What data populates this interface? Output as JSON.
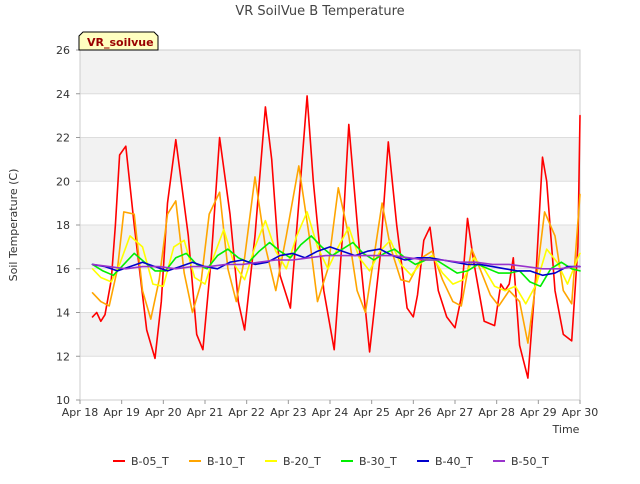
{
  "chart_data": {
    "type": "line",
    "title": "VR SoilVue B Temperature",
    "xlabel": "Time",
    "ylabel": "Soil Temperature (C)",
    "site_label": "VR_soilvue",
    "ylim": [
      10,
      26
    ],
    "yticks": [
      10,
      12,
      14,
      16,
      18,
      20,
      22,
      24,
      26
    ],
    "xlim": [
      "2024-04-18",
      "2024-04-30"
    ],
    "xticks": [
      "Apr 18",
      "Apr 19",
      "Apr 20",
      "Apr 21",
      "Apr 22",
      "Apr 23",
      "Apr 24",
      "Apr 25",
      "Apr 26",
      "Apr 27",
      "Apr 28",
      "Apr 29",
      "Apr 30"
    ],
    "grid": true,
    "legend_position": "bottom",
    "series": [
      {
        "name": "B-05_T",
        "color": "#ff0000",
        "x": [
          0.3,
          0.4,
          0.5,
          0.6,
          0.75,
          0.85,
          0.95,
          1.1,
          1.3,
          1.6,
          1.8,
          1.95,
          2.1,
          2.3,
          2.6,
          2.8,
          2.95,
          3.15,
          3.35,
          3.6,
          3.8,
          3.95,
          4.2,
          4.45,
          4.6,
          4.8,
          5.05,
          5.25,
          5.45,
          5.6,
          5.85,
          6.1,
          6.3,
          6.45,
          6.7,
          6.95,
          7.2,
          7.4,
          7.6,
          7.85,
          8.0,
          8.1,
          8.25,
          8.4,
          8.6,
          8.8,
          9.0,
          9.15,
          9.3,
          9.45,
          9.7,
          9.95,
          10.1,
          10.2,
          10.3,
          10.4,
          10.55,
          10.75,
          10.95,
          11.1,
          11.2,
          11.4,
          11.6,
          11.8,
          11.95,
          12.0
        ],
        "y": [
          13.8,
          14.0,
          13.6,
          13.9,
          15.5,
          18.0,
          21.2,
          21.6,
          18.0,
          13.2,
          11.9,
          14.5,
          19.0,
          21.9,
          17.5,
          13.0,
          12.3,
          16.5,
          22.0,
          18.5,
          14.5,
          13.2,
          17.5,
          23.4,
          21.0,
          15.7,
          14.2,
          19.0,
          23.9,
          20.0,
          15.0,
          12.3,
          17.5,
          22.6,
          17.0,
          12.2,
          16.5,
          21.8,
          18.0,
          14.2,
          13.8,
          14.8,
          17.3,
          17.9,
          15.0,
          13.8,
          13.3,
          14.7,
          18.3,
          16.3,
          13.6,
          13.4,
          15.3,
          15.0,
          15.3,
          16.5,
          12.5,
          11.0,
          16.0,
          21.1,
          20.0,
          15.0,
          13.0,
          12.7,
          17.0,
          23.0
        ]
      },
      {
        "name": "B-10_T",
        "color": "#ffa500",
        "x": [
          0.3,
          0.5,
          0.7,
          0.9,
          1.05,
          1.3,
          1.5,
          1.7,
          1.9,
          2.1,
          2.3,
          2.5,
          2.7,
          2.9,
          3.1,
          3.35,
          3.55,
          3.75,
          3.95,
          4.2,
          4.45,
          4.7,
          4.95,
          5.25,
          5.5,
          5.7,
          5.95,
          6.2,
          6.45,
          6.65,
          6.85,
          7.05,
          7.25,
          7.45,
          7.7,
          7.9,
          8.2,
          8.45,
          8.7,
          8.95,
          9.15,
          9.4,
          9.6,
          9.85,
          10.05,
          10.3,
          10.55,
          10.75,
          10.95,
          11.15,
          11.4,
          11.6,
          11.8,
          12.0
        ],
        "y": [
          14.9,
          14.5,
          14.3,
          16.0,
          18.6,
          18.5,
          15.0,
          13.7,
          15.5,
          18.5,
          19.1,
          15.8,
          14.0,
          15.3,
          18.5,
          19.5,
          16.0,
          14.5,
          16.5,
          20.2,
          17.0,
          15.0,
          17.5,
          20.7,
          17.5,
          14.5,
          16.0,
          19.7,
          17.5,
          15.0,
          14.0,
          16.5,
          19.0,
          17.0,
          15.5,
          15.4,
          16.5,
          16.8,
          15.5,
          14.5,
          14.3,
          16.9,
          16.0,
          14.8,
          14.3,
          15.0,
          14.5,
          12.6,
          15.5,
          18.6,
          17.5,
          15.0,
          14.4,
          19.4
        ]
      },
      {
        "name": "B-20_T",
        "color": "#ffff00",
        "x": [
          0.3,
          0.5,
          0.75,
          0.95,
          1.2,
          1.5,
          1.75,
          2.0,
          2.25,
          2.5,
          2.75,
          3.0,
          3.2,
          3.45,
          3.7,
          3.95,
          4.2,
          4.45,
          4.7,
          4.95,
          5.2,
          5.45,
          5.7,
          5.95,
          6.2,
          6.45,
          6.7,
          6.95,
          7.2,
          7.45,
          7.7,
          7.95,
          8.2,
          8.45,
          8.7,
          8.95,
          9.2,
          9.45,
          9.7,
          9.95,
          10.2,
          10.45,
          10.7,
          10.95,
          11.2,
          11.45,
          11.7,
          11.95,
          12.0
        ],
        "y": [
          16.0,
          15.6,
          15.4,
          16.2,
          17.5,
          17.0,
          15.3,
          15.2,
          17.0,
          17.3,
          15.6,
          15.3,
          16.5,
          17.8,
          16.2,
          15.5,
          17.0,
          18.2,
          16.8,
          16.0,
          17.5,
          18.6,
          17.0,
          16.0,
          17.0,
          17.9,
          16.5,
          15.9,
          16.8,
          17.3,
          16.2,
          15.7,
          16.3,
          16.6,
          15.8,
          15.3,
          15.5,
          16.5,
          16.0,
          15.2,
          15.0,
          15.2,
          14.4,
          15.3,
          16.9,
          16.3,
          15.3,
          16.5,
          16.7
        ]
      },
      {
        "name": "B-30_T",
        "color": "#00ee00",
        "x": [
          0.3,
          0.55,
          0.8,
          1.05,
          1.3,
          1.55,
          1.8,
          2.05,
          2.3,
          2.55,
          2.8,
          3.05,
          3.3,
          3.55,
          3.8,
          4.05,
          4.3,
          4.55,
          4.8,
          5.05,
          5.3,
          5.55,
          5.8,
          6.05,
          6.3,
          6.55,
          6.8,
          7.05,
          7.3,
          7.55,
          7.8,
          8.05,
          8.3,
          8.55,
          8.8,
          9.05,
          9.3,
          9.55,
          9.8,
          10.05,
          10.3,
          10.55,
          10.8,
          11.05,
          11.3,
          11.55,
          11.8,
          12.0
        ],
        "y": [
          16.2,
          15.9,
          15.7,
          16.2,
          16.7,
          16.3,
          15.9,
          15.9,
          16.5,
          16.7,
          16.2,
          16.0,
          16.6,
          16.9,
          16.5,
          16.3,
          16.8,
          17.2,
          16.8,
          16.5,
          17.1,
          17.5,
          17.0,
          16.6,
          16.9,
          17.2,
          16.7,
          16.4,
          16.7,
          16.9,
          16.5,
          16.2,
          16.4,
          16.4,
          16.1,
          15.8,
          15.9,
          16.2,
          16.0,
          15.8,
          15.8,
          15.9,
          15.4,
          15.2,
          16.0,
          16.3,
          16.0,
          15.9
        ]
      },
      {
        "name": "B-40_T",
        "color": "#0000cc",
        "x": [
          0.3,
          0.6,
          0.9,
          1.2,
          1.5,
          1.8,
          2.1,
          2.4,
          2.7,
          3.0,
          3.3,
          3.6,
          3.9,
          4.2,
          4.5,
          4.8,
          5.1,
          5.4,
          5.7,
          6.0,
          6.3,
          6.6,
          6.9,
          7.2,
          7.5,
          7.8,
          8.1,
          8.4,
          8.7,
          9.0,
          9.3,
          9.6,
          9.9,
          10.2,
          10.5,
          10.8,
          11.1,
          11.4,
          11.7,
          12.0
        ],
        "y": [
          16.2,
          16.1,
          15.9,
          16.1,
          16.3,
          16.1,
          15.9,
          16.1,
          16.3,
          16.1,
          16.0,
          16.3,
          16.4,
          16.2,
          16.3,
          16.6,
          16.7,
          16.5,
          16.8,
          17.0,
          16.8,
          16.6,
          16.8,
          16.9,
          16.6,
          16.4,
          16.5,
          16.5,
          16.4,
          16.3,
          16.2,
          16.2,
          16.1,
          16.0,
          15.9,
          15.9,
          15.7,
          15.8,
          16.1,
          16.1
        ]
      },
      {
        "name": "B-50_T",
        "color": "#9933cc",
        "x": [
          0.3,
          0.7,
          1.1,
          1.5,
          1.9,
          2.3,
          2.7,
          3.1,
          3.5,
          3.9,
          4.3,
          4.7,
          5.1,
          5.5,
          5.9,
          6.3,
          6.7,
          7.1,
          7.5,
          7.9,
          8.3,
          8.7,
          9.1,
          9.5,
          9.9,
          10.3,
          10.7,
          11.1,
          11.5,
          11.9,
          12.0
        ],
        "y": [
          16.2,
          16.1,
          16.0,
          16.1,
          16.1,
          16.0,
          16.1,
          16.1,
          16.2,
          16.2,
          16.3,
          16.4,
          16.4,
          16.5,
          16.6,
          16.6,
          16.6,
          16.6,
          16.6,
          16.5,
          16.4,
          16.4,
          16.3,
          16.3,
          16.2,
          16.2,
          16.1,
          16.0,
          16.0,
          16.1,
          16.1
        ]
      }
    ]
  }
}
